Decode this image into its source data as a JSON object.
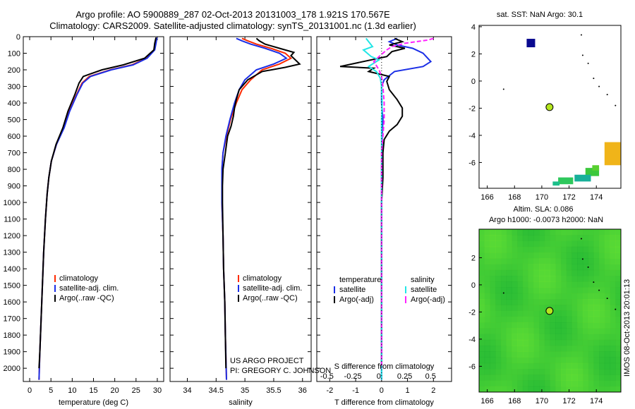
{
  "title_line1": "Argo profile: AO 5900889_287 02-Oct-2013 20131003_178 1.921S 170.567E",
  "title_line2": "Climatology: CARS2009. Satellite-adjusted climatology: synTS_20131001.nc (1.3d earlier)",
  "project_line1": "US ARGO PROJECT",
  "project_line2": "PI: GREGORY C. JOHNSON",
  "footer": "IMOS 08-Oct-2013 20:01:13",
  "colors": {
    "climatology": "#ff2a00",
    "satellite": "#1a2ee6",
    "argo": "#000000",
    "satellite_salinity": "#22e6e6",
    "argo_salinity": "#ff22ff",
    "sst_square": "#0a0a90",
    "argo_dot": "#b4e61e",
    "map_green": "#3dd13a"
  },
  "chart_data": [
    {
      "type": "line",
      "name": "temperature-profile",
      "xlabel": "temperature (deg C)",
      "xlim": [
        -1.5,
        31.5
      ],
      "xticks": [
        0,
        5,
        10,
        15,
        20,
        25,
        30
      ],
      "ylim": [
        2080,
        0
      ],
      "yticks": [
        0,
        100,
        200,
        300,
        400,
        500,
        600,
        700,
        800,
        900,
        1000,
        1100,
        1200,
        1300,
        1400,
        1500,
        1600,
        1700,
        1800,
        1900,
        2000
      ],
      "legend": [
        "climatology",
        "satellite-adj. clim.",
        "Argo(..raw -QC)"
      ],
      "series": [
        {
          "name": "climatology",
          "color_key": "climatology",
          "points": [
            [
              29.8,
              5
            ],
            [
              29.6,
              40
            ],
            [
              29.3,
              80
            ],
            [
              27.5,
              130
            ],
            [
              24,
              170
            ],
            [
              19,
              200
            ],
            [
              14,
              240
            ],
            [
              12.3,
              280
            ],
            [
              11,
              350
            ],
            [
              9.3,
              450
            ],
            [
              8,
              550
            ],
            [
              6.3,
              650
            ],
            [
              5.1,
              750
            ],
            [
              4.5,
              850
            ],
            [
              4.1,
              950
            ],
            [
              3.7,
              1100
            ],
            [
              3.3,
              1300
            ],
            [
              3.0,
              1500
            ],
            [
              2.7,
              1700
            ],
            [
              2.4,
              1900
            ],
            [
              2.2,
              2070
            ]
          ]
        },
        {
          "name": "satellite-adj. clim.",
          "color_key": "satellite",
          "points": [
            [
              29.9,
              5
            ],
            [
              29.7,
              40
            ],
            [
              29.4,
              80
            ],
            [
              27.6,
              130
            ],
            [
              24.3,
              170
            ],
            [
              19.2,
              200
            ],
            [
              14.3,
              240
            ],
            [
              12.5,
              280
            ],
            [
              11.1,
              350
            ],
            [
              9.4,
              450
            ],
            [
              8.1,
              550
            ],
            [
              6.3,
              650
            ],
            [
              5.1,
              750
            ],
            [
              4.5,
              850
            ],
            [
              4.1,
              950
            ],
            [
              3.7,
              1100
            ],
            [
              3.3,
              1300
            ],
            [
              3.0,
              1500
            ],
            [
              2.7,
              1700
            ],
            [
              2.4,
              1900
            ],
            [
              2.2,
              2070
            ]
          ]
        },
        {
          "name": "Argo(..raw -QC)",
          "color_key": "argo",
          "points": [
            [
              29.7,
              5
            ],
            [
              29.4,
              40
            ],
            [
              29.2,
              80
            ],
            [
              27,
              130
            ],
            [
              22,
              170
            ],
            [
              17,
              200
            ],
            [
              12.6,
              240
            ],
            [
              11.6,
              280
            ],
            [
              10.6,
              350
            ],
            [
              9.0,
              450
            ],
            [
              7.8,
              550
            ],
            [
              6.2,
              650
            ],
            [
              5.1,
              750
            ],
            [
              4.5,
              850
            ],
            [
              4.1,
              950
            ],
            [
              3.7,
              1100
            ],
            [
              3.3,
              1300
            ],
            [
              3.0,
              1500
            ],
            [
              2.7,
              1700
            ],
            [
              2.4,
              1900
            ],
            [
              2.2,
              2000
            ]
          ]
        }
      ]
    },
    {
      "type": "line",
      "name": "salinity-profile",
      "xlabel": "salinity",
      "xlim": [
        33.7,
        36.15
      ],
      "xticks": [
        34,
        34.5,
        35,
        35.5,
        36
      ],
      "ylim": [
        2080,
        0
      ],
      "legend": [
        "climatology",
        "satellite-adj. clim.",
        "Argo(..raw -QC)"
      ],
      "series": [
        {
          "name": "climatology",
          "color_key": "climatology",
          "points": [
            [
              34.95,
              10
            ],
            [
              35.05,
              25
            ],
            [
              35.2,
              45
            ],
            [
              35.45,
              70
            ],
            [
              35.7,
              100
            ],
            [
              35.8,
              130
            ],
            [
              35.6,
              165
            ],
            [
              35.3,
              200
            ],
            [
              35.1,
              260
            ],
            [
              34.95,
              320
            ],
            [
              34.85,
              400
            ],
            [
              34.75,
              500
            ],
            [
              34.68,
              600
            ],
            [
              34.62,
              700
            ],
            [
              34.6,
              800
            ],
            [
              34.6,
              1000
            ],
            [
              34.62,
              1200
            ],
            [
              34.63,
              1400
            ],
            [
              34.65,
              1600
            ],
            [
              34.66,
              1800
            ],
            [
              34.68,
              2070
            ]
          ]
        },
        {
          "name": "satellite-adj. clim.",
          "color_key": "satellite",
          "points": [
            [
              34.85,
              10
            ],
            [
              34.95,
              25
            ],
            [
              35.1,
              45
            ],
            [
              35.35,
              70
            ],
            [
              35.6,
              100
            ],
            [
              35.72,
              130
            ],
            [
              35.5,
              165
            ],
            [
              35.2,
              200
            ],
            [
              35.0,
              260
            ],
            [
              34.9,
              320
            ],
            [
              34.82,
              400
            ],
            [
              34.74,
              500
            ],
            [
              34.67,
              600
            ],
            [
              34.62,
              700
            ],
            [
              34.6,
              800
            ],
            [
              34.6,
              1000
            ],
            [
              34.62,
              1200
            ],
            [
              34.63,
              1400
            ],
            [
              34.65,
              1600
            ],
            [
              34.66,
              1800
            ],
            [
              34.68,
              2070
            ]
          ]
        },
        {
          "name": "Argo(..raw -QC)",
          "color_key": "argo",
          "points": [
            [
              35.2,
              10
            ],
            [
              35.25,
              25
            ],
            [
              35.35,
              45
            ],
            [
              35.6,
              70
            ],
            [
              35.85,
              95
            ],
            [
              35.8,
              115
            ],
            [
              35.95,
              165
            ],
            [
              35.7,
              185
            ],
            [
              35.3,
              210
            ],
            [
              35.05,
              260
            ],
            [
              34.9,
              320
            ],
            [
              34.85,
              380
            ],
            [
              34.82,
              430
            ],
            [
              34.8,
              480
            ],
            [
              34.76,
              540
            ],
            [
              34.7,
              600
            ],
            [
              34.66,
              700
            ],
            [
              34.62,
              800
            ],
            [
              34.61,
              900
            ],
            [
              34.61,
              1000
            ],
            [
              34.62,
              1200
            ],
            [
              34.63,
              1400
            ],
            [
              34.65,
              1600
            ],
            [
              34.66,
              1800
            ],
            [
              34.67,
              2000
            ]
          ]
        }
      ]
    },
    {
      "type": "line",
      "name": "difference-profile",
      "xlabel": "T difference from climatology",
      "xlabel_top": "S difference from climatology",
      "xlim": [
        -2.5,
        2.7
      ],
      "xticks": [
        -2,
        -1,
        0,
        1,
        2
      ],
      "xticks_top": [
        "-0.5",
        "-0.25",
        "0",
        "0.25",
        "0.5"
      ],
      "ylim": [
        2080,
        0
      ],
      "legend": [
        {
          "group": "temperature",
          "items": [
            "satellite",
            "Argo(-adj)"
          ]
        },
        {
          "group": "salinity",
          "items": [
            "satellite",
            "Argo(-adj)"
          ]
        }
      ],
      "series": [
        {
          "name": "temperature satellite",
          "color_key": "satellite",
          "points": [
            [
              0.6,
              10
            ],
            [
              0.3,
              30
            ],
            [
              0.6,
              50
            ],
            [
              1.2,
              70
            ],
            [
              1.6,
              100
            ],
            [
              1.9,
              150
            ],
            [
              1.6,
              180
            ],
            [
              0.5,
              210
            ],
            [
              0.1,
              260
            ],
            [
              0,
              300
            ],
            [
              0,
              400
            ],
            [
              0.05,
              500
            ],
            [
              0.02,
              600
            ],
            [
              0,
              800
            ],
            [
              0,
              1000
            ],
            [
              0,
              1500
            ],
            [
              0,
              2070
            ]
          ]
        },
        {
          "name": "Argo(-adj)",
          "color_key": "argo",
          "points": [
            [
              0.5,
              10
            ],
            [
              0.8,
              30
            ],
            [
              0.3,
              50
            ],
            [
              0.9,
              70
            ],
            [
              0.4,
              90
            ],
            [
              0.2,
              120
            ],
            [
              -1.6,
              180
            ],
            [
              -0.3,
              190
            ],
            [
              -0.5,
              210
            ],
            [
              0.3,
              240
            ],
            [
              0.2,
              270
            ],
            [
              0.3,
              320
            ],
            [
              0.6,
              380
            ],
            [
              0.8,
              430
            ],
            [
              0.8,
              480
            ],
            [
              0.6,
              530
            ],
            [
              0.3,
              570
            ],
            [
              0.1,
              620
            ],
            [
              0.05,
              700
            ],
            [
              0.05,
              850
            ],
            [
              0,
              1000
            ],
            [
              0,
              1300
            ],
            [
              0,
              1600
            ],
            [
              0,
              2000
            ]
          ]
        },
        {
          "name": "salinity satellite",
          "color_key": "satellite_salinity",
          "points": [
            [
              -0.6,
              10
            ],
            [
              -0.5,
              30
            ],
            [
              -0.35,
              60
            ],
            [
              -0.7,
              80
            ],
            [
              -0.4,
              120
            ],
            [
              -0.1,
              140
            ],
            [
              -0.5,
              180
            ],
            [
              -0.2,
              210
            ],
            [
              -0.05,
              250
            ],
            [
              0,
              300
            ],
            [
              0.02,
              400
            ],
            [
              0,
              500
            ],
            [
              0,
              700
            ],
            [
              0,
              1000
            ],
            [
              0,
              1500
            ],
            [
              0,
              2070
            ]
          ]
        },
        {
          "name": "salinity Argo(-adj)",
          "color_key": "argo_salinity",
          "points": [
            [
              2.0,
              10
            ],
            [
              1.8,
              20
            ],
            [
              0.9,
              40
            ],
            [
              0.4,
              60
            ],
            [
              0.2,
              80
            ],
            [
              -0.1,
              120
            ],
            [
              -0.3,
              150
            ],
            [
              -0.1,
              200
            ],
            [
              0.0,
              240
            ],
            [
              0.05,
              300
            ],
            [
              0.1,
              400
            ],
            [
              0.1,
              500
            ],
            [
              0.05,
              600
            ],
            [
              0.0,
              700
            ],
            [
              0.0,
              900
            ],
            [
              0,
              1200
            ],
            [
              0,
              1500
            ],
            [
              0,
              2000
            ]
          ]
        }
      ]
    },
    {
      "type": "heatmap",
      "name": "sst-map",
      "title": "sat. SST: NaN Argo: 30.1",
      "xlim": [
        165.4,
        175.8
      ],
      "ylim": [
        -7.9,
        4.1
      ],
      "xticks": [
        166,
        168,
        170,
        172,
        174
      ],
      "yticks": [
        -6,
        -4,
        -2,
        0,
        2,
        4
      ],
      "argo_position": [
        170.567,
        -1.921
      ],
      "sst_marker": [
        169.2,
        2.8
      ]
    },
    {
      "type": "heatmap",
      "name": "sla-map",
      "title": "Altim. SLA: 0.086",
      "subtitle": "Argo h1000: -0.0073 h2000: NaN",
      "xlim": [
        165.4,
        175.8
      ],
      "ylim": [
        -7.9,
        4.1
      ],
      "xticks": [
        166,
        168,
        170,
        172,
        174
      ],
      "yticks": [
        -6,
        -4,
        -2,
        0,
        2
      ],
      "argo_position": [
        170.567,
        -1.921
      ]
    }
  ]
}
